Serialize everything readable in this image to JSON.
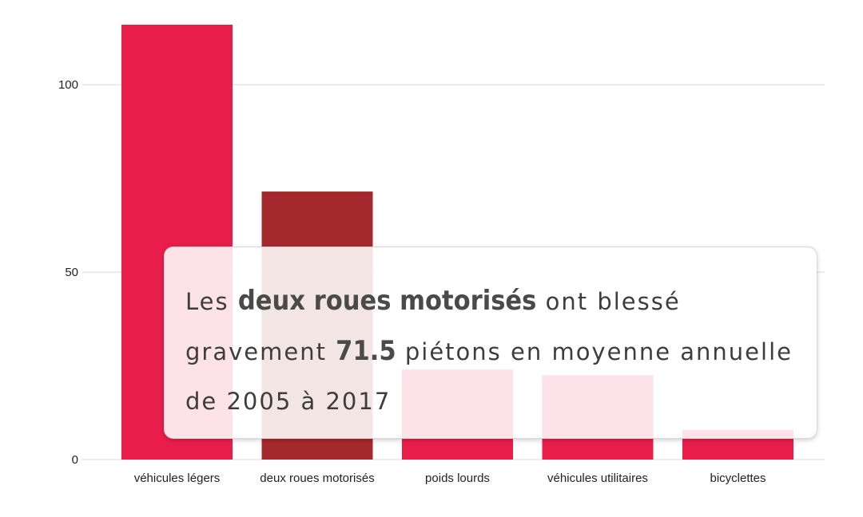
{
  "chart_data": {
    "type": "bar",
    "categories": [
      "véhicules légers",
      "deux roues motorisés",
      "poids lourds",
      "véhicules utilitaires",
      "bicyclettes"
    ],
    "values": [
      116,
      71.5,
      24,
      22.5,
      8
    ],
    "highlight_index": 1,
    "colors": {
      "default": "#e81d4a",
      "highlight": "#a4282c",
      "grid": "#d8d8d8"
    },
    "yticks": [
      0,
      50,
      100
    ],
    "ylim": [
      0,
      116
    ],
    "grid": true
  },
  "annotation": {
    "part1": "Les ",
    "bold1": "deux roues motorisés",
    "part2": " ont blessé gravement ",
    "bold2": "71.5",
    "part3": " piétons en moyenne annuelle de 2005 à 2017"
  }
}
